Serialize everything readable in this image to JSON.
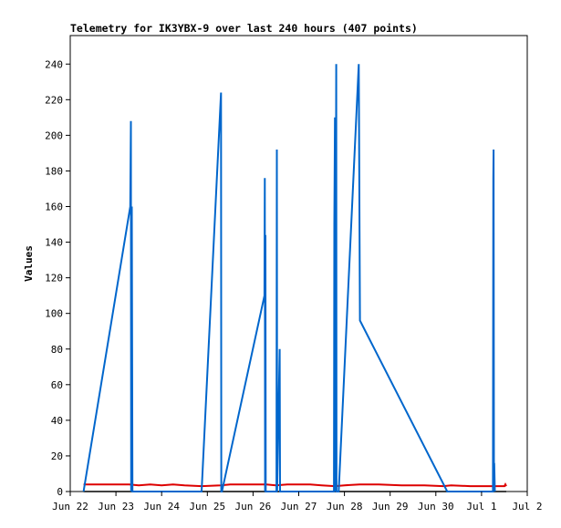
{
  "chart_data": {
    "type": "line",
    "title": "Telemetry for IK3YBX-9 over last 240 hours (407 points)",
    "ylabel": "Values",
    "xlabel": "",
    "x_ticks": [
      "Jun 22",
      "Jun 23",
      "Jun 24",
      "Jun 25",
      "Jun 26",
      "Jun 27",
      "Jun 28",
      "Jun 29",
      "Jun 30",
      "Jul 1",
      "Jul 2"
    ],
    "y_ticks": [
      0,
      20,
      40,
      60,
      80,
      100,
      120,
      140,
      160,
      180,
      200,
      220,
      240
    ],
    "xlim": [
      "Jun 22 00:00",
      "Jul 2 00:00"
    ],
    "ylim": [
      0,
      256
    ],
    "grid": false,
    "colors": {
      "series_blue": "#0066cc",
      "series_red": "#dd0000",
      "series_black": "#000000"
    },
    "series": [
      {
        "color": "series_blue",
        "points": [
          [
            "Jun 22 07:00",
            0
          ],
          [
            "Jun 23 07:30",
            160
          ],
          [
            "Jun 23 07:50",
            208
          ],
          [
            "Jun 23 08:00",
            0
          ],
          [
            "Jun 23 08:20",
            160
          ],
          [
            "Jun 23 08:40",
            0
          ],
          [
            "Jun 24 21:00",
            0
          ],
          [
            "Jun 25 07:10",
            224
          ],
          [
            "Jun 25 07:20",
            0
          ],
          [
            "Jun 25 07:40",
            0
          ],
          [
            "Jun 26 06:00",
            110
          ],
          [
            "Jun 26 06:10",
            176
          ],
          [
            "Jun 26 06:20",
            0
          ],
          [
            "Jun 26 06:30",
            144
          ],
          [
            "Jun 26 06:40",
            0
          ],
          [
            "Jun 26 12:20",
            0
          ],
          [
            "Jun 26 12:30",
            192
          ],
          [
            "Jun 26 12:40",
            0
          ],
          [
            "Jun 26 14:00",
            80
          ],
          [
            "Jun 26 14:10",
            0
          ],
          [
            "Jun 27 18:30",
            0
          ],
          [
            "Jun 27 18:40",
            150
          ],
          [
            "Jun 27 19:00",
            210
          ],
          [
            "Jun 27 19:10",
            0
          ],
          [
            "Jun 27 19:40",
            240
          ],
          [
            "Jun 27 19:50",
            0
          ],
          [
            "Jun 27 21:00",
            0
          ],
          [
            "Jun 28 07:30",
            240
          ],
          [
            "Jun 28 08:10",
            96
          ],
          [
            "Jun 30 06:00",
            0
          ],
          [
            "Jul 1 06:00",
            0
          ],
          [
            "Jul 1 06:10",
            176
          ],
          [
            "Jul 1 06:20",
            192
          ],
          [
            "Jul 1 06:30",
            0
          ],
          [
            "Jul 1 06:40",
            16
          ],
          [
            "Jul 1 07:00",
            0
          ]
        ]
      },
      {
        "color": "series_red",
        "points": [
          [
            "Jun 22 07:00",
            4
          ],
          [
            "Jun 23 07:00",
            4
          ],
          [
            "Jun 23 12:00",
            3.5
          ],
          [
            "Jun 23 18:00",
            4
          ],
          [
            "Jun 24 00:00",
            3.5
          ],
          [
            "Jun 24 06:00",
            4
          ],
          [
            "Jun 24 12:00",
            3.5
          ],
          [
            "Jun 24 21:00",
            3
          ],
          [
            "Jun 25 07:00",
            3.5
          ],
          [
            "Jun 25 12:00",
            4
          ],
          [
            "Jun 26 07:00",
            4
          ],
          [
            "Jun 26 12:00",
            3.5
          ],
          [
            "Jun 26 18:00",
            4
          ],
          [
            "Jun 27 06:00",
            4
          ],
          [
            "Jun 27 12:00",
            3.5
          ],
          [
            "Jun 27 19:00",
            3
          ],
          [
            "Jun 28 00:00",
            3.5
          ],
          [
            "Jun 28 08:00",
            4
          ],
          [
            "Jun 28 18:00",
            4
          ],
          [
            "Jun 29 06:00",
            3.5
          ],
          [
            "Jun 29 18:00",
            3.5
          ],
          [
            "Jun 30 04:00",
            3
          ],
          [
            "Jun 30 08:00",
            3.5
          ],
          [
            "Jun 30 18:00",
            3
          ],
          [
            "Jul 1 06:00",
            3
          ],
          [
            "Jul 1 12:00",
            3
          ],
          [
            "Jul 1 12:30",
            4
          ],
          [
            "Jul 1 13:00",
            3
          ]
        ]
      },
      {
        "color": "series_black",
        "points": [
          [
            "Jun 22 07:00",
            0
          ],
          [
            "Jul 1 13:00",
            0
          ]
        ]
      }
    ]
  }
}
